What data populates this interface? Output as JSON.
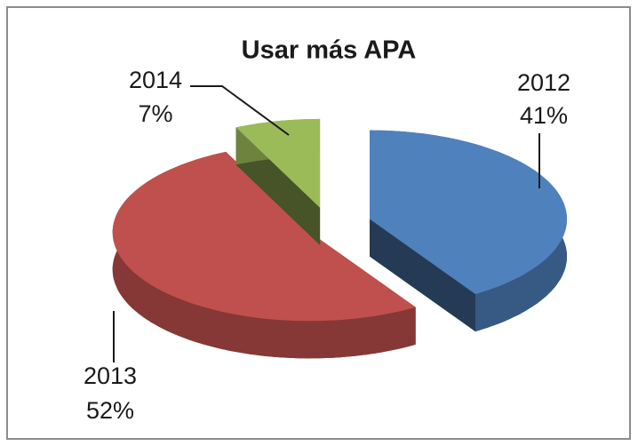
{
  "chart_data": {
    "type": "pie",
    "title": "Usar más APA",
    "categories": [
      "2012",
      "2013",
      "2014"
    ],
    "values": [
      41,
      52,
      7
    ],
    "value_labels": [
      "41%",
      "52%",
      "7%"
    ],
    "colors": [
      "#4f81bd",
      "#c0504d",
      "#9bbb59"
    ],
    "three_d": true,
    "exploded": true
  }
}
